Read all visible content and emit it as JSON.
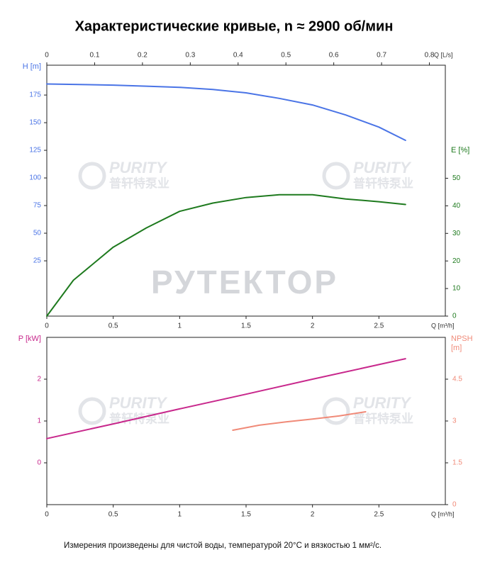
{
  "title": "Характеристические кривые, n ≈ 2900 об/мин",
  "note": "Измерения произведены для чистой воды, температурой 20°C и вязкостью 1 мм²/с.",
  "watermarks": {
    "brand": "PURITY",
    "brand_cn": "普轩特泵业",
    "main": "РУТЕКТОР"
  },
  "chart_data": [
    {
      "type": "line",
      "xlabel": "Q [m³/h]",
      "xlim": [
        0,
        3
      ],
      "xticks": [
        0,
        0.5,
        1,
        1.5,
        2,
        2.5
      ],
      "x2label": "Q [L/s]",
      "x2lim": [
        0,
        0.8333
      ],
      "x2ticks": [
        0,
        0.1,
        0.2,
        0.3,
        0.4,
        0.5,
        0.6,
        0.7,
        0.8
      ],
      "ylabel": "H [m]",
      "ylim": [
        -25,
        202
      ],
      "yticks": [
        25,
        50,
        75,
        100,
        125,
        150,
        175
      ],
      "y2label": "E [%]",
      "y2lim": [
        0,
        91
      ],
      "y2ticks": [
        0,
        10,
        20,
        30,
        40,
        50
      ],
      "series": [
        {
          "color": "#4a74e6",
          "axis": "y",
          "x": [
            0,
            0.25,
            0.5,
            0.75,
            1,
            1.25,
            1.5,
            1.75,
            2,
            2.25,
            2.5,
            2.7
          ],
          "values": [
            185,
            184.5,
            184,
            183,
            182,
            180,
            177,
            172,
            166,
            157,
            146,
            134
          ]
        },
        {
          "color": "#1e7a1e",
          "axis": "y2",
          "x": [
            0,
            0.2,
            0.5,
            0.75,
            1,
            1.25,
            1.5,
            1.75,
            2,
            2.25,
            2.5,
            2.7
          ],
          "values": [
            0,
            13,
            25,
            32,
            38,
            41,
            43,
            44,
            44,
            42.5,
            41.5,
            40.5
          ]
        }
      ]
    },
    {
      "type": "line",
      "xlabel": "Q [m³/h]",
      "xlim": [
        0,
        3
      ],
      "xticks": [
        0,
        0.5,
        1,
        1.5,
        2,
        2.5
      ],
      "ylabel": "P [kW]",
      "ylim": [
        -1,
        3
      ],
      "yticks": [
        0,
        1,
        2
      ],
      "y2label": "NPSH [m]",
      "y2lim": [
        0,
        6
      ],
      "y2ticks": [
        0,
        1.5,
        3,
        4.5
      ],
      "series": [
        {
          "color": "#c8288c",
          "axis": "y",
          "x": [
            0,
            0.5,
            1,
            1.5,
            2,
            2.5,
            2.7
          ],
          "values": [
            0.58,
            0.93,
            1.29,
            1.64,
            2.0,
            2.35,
            2.49
          ]
        },
        {
          "color": "#f08a78",
          "axis": "y2",
          "x": [
            1.4,
            1.6,
            1.8,
            2.0,
            2.2,
            2.4
          ],
          "values": [
            2.67,
            2.85,
            2.97,
            3.07,
            3.18,
            3.33
          ]
        }
      ]
    }
  ]
}
